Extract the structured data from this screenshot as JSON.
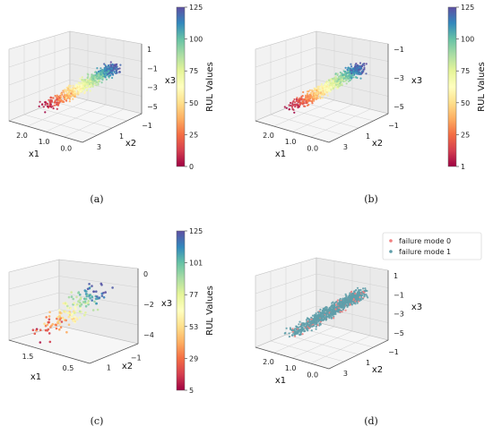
{
  "chart_data": [
    {
      "id": "a",
      "type": "scatter",
      "caption": "(a)",
      "x1_label": "x1",
      "x2_label": "x2",
      "x3_label": "x3",
      "x1_ticks": [
        "2.0",
        "1.0",
        "0.0"
      ],
      "x2_ticks": [
        "3",
        "1",
        "−1"
      ],
      "x3_ticks": [
        "1",
        "−1",
        "−3",
        "−5"
      ],
      "colorbar_label": "RUL Values",
      "colorbar_ticks": [
        "125",
        "100",
        "75",
        "50",
        "25",
        "0"
      ],
      "colorbar_range": [
        0,
        125
      ],
      "colormap": "Spectral",
      "point_count": 700,
      "spread": 1.0
    },
    {
      "id": "b",
      "type": "scatter",
      "caption": "(b)",
      "x1_label": "x1",
      "x2_label": "x2",
      "x3_label": "x3",
      "x1_ticks": [
        "2.0",
        "1.0",
        "0.0"
      ],
      "x2_ticks": [
        "3",
        "1",
        "−1"
      ],
      "x3_ticks": [
        "−1",
        "−3",
        "−5"
      ],
      "colorbar_label": "RUL Values",
      "colorbar_ticks": [
        "125",
        "100",
        "75",
        "50",
        "25",
        "1"
      ],
      "colorbar_range": [
        1,
        125
      ],
      "colormap": "Spectral",
      "point_count": 700,
      "spread": 1.0
    },
    {
      "id": "c",
      "type": "scatter",
      "caption": "(c)",
      "x1_label": "x1",
      "x2_label": "x2",
      "x3_label": "x3",
      "x1_ticks": [
        "1.5",
        "0.5"
      ],
      "x2_ticks": [
        "1",
        "−1"
      ],
      "x3_ticks": [
        "0",
        "−2",
        "−4"
      ],
      "colorbar_label": "RUL Values",
      "colorbar_ticks": [
        "125",
        "101",
        "77",
        "53",
        "29",
        "5"
      ],
      "colorbar_range": [
        5,
        125
      ],
      "colormap": "Spectral",
      "point_count": 170,
      "spread": 1.6
    },
    {
      "id": "d",
      "type": "scatter",
      "caption": "(d)",
      "x1_label": "x1",
      "x2_label": "x2",
      "x3_label": "x3",
      "x1_ticks": [
        "2.0",
        "1.0",
        "0.0"
      ],
      "x2_ticks": [
        "3",
        "1",
        "−1"
      ],
      "x3_ticks": [
        "1",
        "−1",
        "−3",
        "−5"
      ],
      "legend_placement": "top-right",
      "series": [
        {
          "name": "failure mode 0",
          "color": "#f08080"
        },
        {
          "name": "failure mode 1",
          "color": "#5f9eaa"
        }
      ],
      "point_count": 900,
      "spread": 1.0
    }
  ]
}
